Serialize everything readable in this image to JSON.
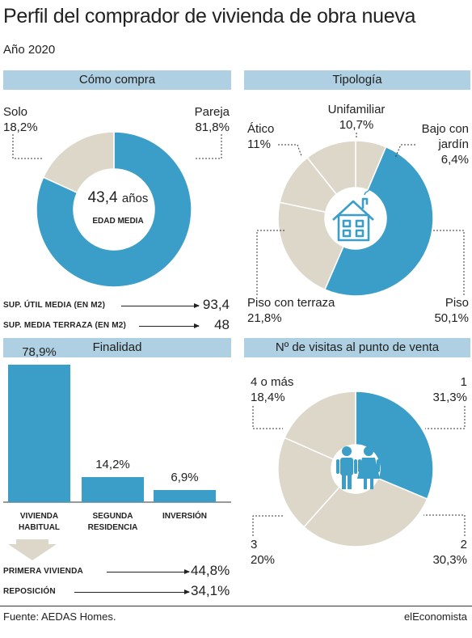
{
  "header": {
    "title": "Perfil del comprador de vivienda de obra nueva",
    "subtitle": "Año 2020"
  },
  "footer": {
    "source": "Fuente: AEDAS Homes.",
    "brand": "elEconomista"
  },
  "colors": {
    "accent": "#3a9ec9",
    "neutral": "#dcd7c9",
    "header_bg": "#aed0e2",
    "arrow_shape": "#dcd7c9"
  },
  "icons": {
    "tipologia_center": "house-icon",
    "visitas_center": "couple-icon",
    "finalidad_arrow": "down-arrow-icon"
  },
  "chart_data": [
    {
      "id": "como_compra",
      "type": "pie",
      "title": "Cómo compra",
      "slices": [
        {
          "label": "Pareja",
          "value": 81.8,
          "display": "81,8%",
          "color": "#3a9ec9"
        },
        {
          "label": "Solo",
          "value": 18.2,
          "display": "18,2%",
          "color": "#dcd7c9"
        }
      ],
      "center": {
        "value": "43,4",
        "unit": "años",
        "label": "EDAD MEDIA"
      },
      "stats": [
        {
          "label": "SUP. ÚTIL MEDIA (EN M2)",
          "value": "93,4"
        },
        {
          "label": "SUP. MEDIA TERRAZA (EN M2)",
          "value": "48"
        }
      ]
    },
    {
      "id": "tipologia",
      "type": "pie",
      "title": "Tipología",
      "slices": [
        {
          "label": "Unifamiliar",
          "value": 10.7,
          "display": "10,7%",
          "color": "#dcd7c9"
        },
        {
          "label": "Bajo con jardín",
          "value": 6.4,
          "display": "6,4%",
          "color": "#dcd7c9"
        },
        {
          "label": "Piso",
          "value": 50.1,
          "display": "50,1%",
          "color": "#3a9ec9"
        },
        {
          "label": "Piso con terraza",
          "value": 21.8,
          "display": "21,8%",
          "color": "#dcd7c9"
        },
        {
          "label": "Ático",
          "value": 11,
          "display": "11%",
          "color": "#dcd7c9"
        }
      ]
    },
    {
      "id": "finalidad",
      "type": "bar",
      "title": "Finalidad",
      "categories": [
        "VIVIENDA HABITUAL",
        "SEGUNDA RESIDENCIA",
        "INVERSIÓN"
      ],
      "category_lines": [
        [
          "VIVIENDA",
          "HABITUAL"
        ],
        [
          "SEGUNDA",
          "RESIDENCIA"
        ],
        [
          "INVERSIÓN"
        ]
      ],
      "values": [
        78.9,
        14.2,
        6.9
      ],
      "value_labels": [
        "78,9%",
        "14,2%",
        "6,9%"
      ],
      "sub_stats": [
        {
          "label": "PRIMERA VIVIENDA",
          "value": "44,8%"
        },
        {
          "label": "REPOSICIÓN",
          "value": "34,1%"
        }
      ]
    },
    {
      "id": "visitas",
      "type": "pie",
      "title": "Nº de visitas al punto de venta",
      "slices": [
        {
          "label": "1",
          "value": 31.3,
          "display": "31,3%",
          "color": "#3a9ec9"
        },
        {
          "label": "2",
          "value": 30.3,
          "display": "30,3%",
          "color": "#dcd7c9"
        },
        {
          "label": "3",
          "value": 20,
          "display": "20%",
          "color": "#dcd7c9"
        },
        {
          "label": "4 o más",
          "value": 18.4,
          "display": "18,4%",
          "color": "#dcd7c9"
        }
      ]
    }
  ]
}
